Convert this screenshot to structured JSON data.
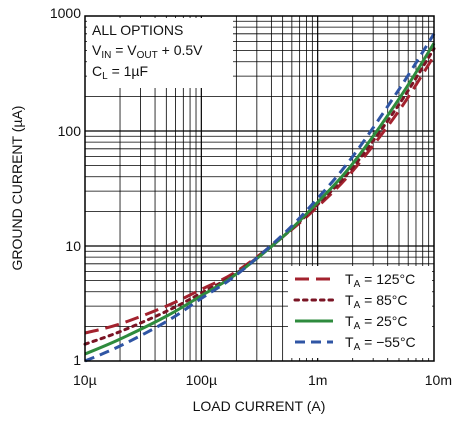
{
  "chart_data": {
    "type": "line",
    "xlabel": "LOAD CURRENT (A)",
    "ylabel": "GROUND CURRENT (µA)",
    "x_scale": "log",
    "y_scale": "log",
    "xlim": [
      1e-05,
      0.01
    ],
    "ylim": [
      1,
      1000
    ],
    "grid": true,
    "x_tick_labels": [
      "10µ",
      "100µ",
      "1m",
      "10m"
    ],
    "y_tick_labels": [
      "1",
      "10",
      "100",
      "1000"
    ],
    "annotation": {
      "line1": "ALL OPTIONS",
      "line2_a": "V",
      "line2_sub_a": "IN",
      "line2_b": " = V",
      "line2_sub_b": "OUT",
      "line2_c": " + 0.5V",
      "line3_a": "C",
      "line3_sub": "L",
      "line3_b": " = 1µF"
    },
    "legend_position": "bottom-right",
    "series": [
      {
        "name": "125°C",
        "legend_pre": "T",
        "legend_sub": "A",
        "legend_post": " = 125°C",
        "color": "#a3222e",
        "dash": "long-dash",
        "x": [
          1e-05,
          2e-05,
          5e-05,
          0.0001,
          0.0002,
          0.0005,
          0.001,
          0.002,
          0.005,
          0.01
        ],
        "y": [
          1.75,
          2.1,
          3.0,
          4.2,
          6.0,
          12,
          22,
          45,
          150,
          450
        ]
      },
      {
        "name": "85°C",
        "legend_pre": "T",
        "legend_sub": "A",
        "legend_post": " = 85°C",
        "color": "#7a1424",
        "dash": "dot",
        "x": [
          1e-05,
          2e-05,
          5e-05,
          0.0001,
          0.0002,
          0.0005,
          0.001,
          0.002,
          0.005,
          0.01
        ],
        "y": [
          1.4,
          1.8,
          2.7,
          3.9,
          5.8,
          12,
          23,
          48,
          170,
          520
        ]
      },
      {
        "name": "25°C",
        "legend_pre": "T",
        "legend_sub": "A",
        "legend_post": " = 25°C",
        "color": "#2e8b3d",
        "dash": "solid",
        "x": [
          1e-05,
          2e-05,
          5e-05,
          0.0001,
          0.0002,
          0.0005,
          0.001,
          0.002,
          0.005,
          0.01
        ],
        "y": [
          1.15,
          1.55,
          2.45,
          3.7,
          5.7,
          12,
          24,
          52,
          190,
          580
        ]
      },
      {
        "name": "-55°C",
        "legend_pre": "T",
        "legend_sub": "A",
        "legend_post": " = −55°C",
        "color": "#2f55a4",
        "dash": "dash",
        "x": [
          1e-05,
          2e-05,
          5e-05,
          0.0001,
          0.0002,
          0.0005,
          0.001,
          0.002,
          0.005,
          0.01
        ],
        "y": [
          1.0,
          1.35,
          2.2,
          3.5,
          5.6,
          12.5,
          26,
          60,
          230,
          700
        ]
      }
    ]
  }
}
